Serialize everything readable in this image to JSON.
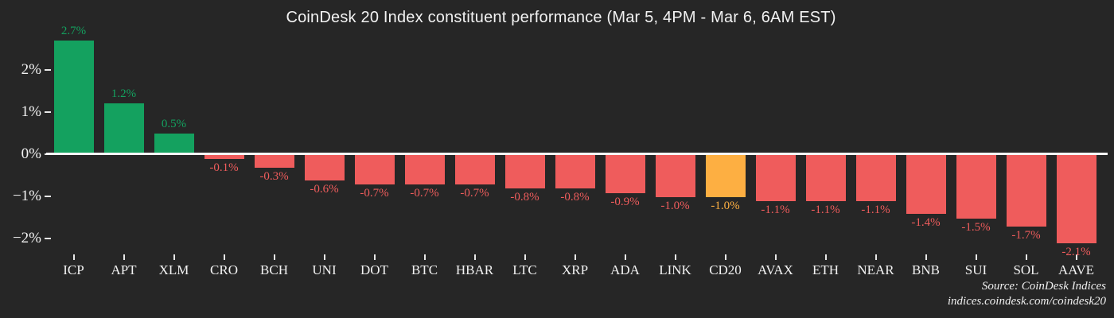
{
  "chart_data": {
    "type": "bar",
    "title": "CoinDesk 20 Index constituent performance (Mar 5, 4PM - Mar 6, 6AM EST)",
    "categories": [
      "ICP",
      "APT",
      "XLM",
      "CRO",
      "BCH",
      "UNI",
      "DOT",
      "BTC",
      "HBAR",
      "LTC",
      "XRP",
      "ADA",
      "LINK",
      "CD20",
      "AVAX",
      "ETH",
      "NEAR",
      "BNB",
      "SUI",
      "SOL",
      "AAVE"
    ],
    "values": [
      2.7,
      1.2,
      0.5,
      -0.1,
      -0.3,
      -0.6,
      -0.7,
      -0.7,
      -0.7,
      -0.8,
      -0.8,
      -0.9,
      -1.0,
      -1.0,
      -1.1,
      -1.1,
      -1.1,
      -1.4,
      -1.5,
      -1.7,
      -2.1
    ],
    "value_labels": [
      "2.7%",
      "1.2%",
      "0.5%",
      "-0.1%",
      "-0.3%",
      "-0.6%",
      "-0.7%",
      "-0.7%",
      "-0.7%",
      "-0.8%",
      "-0.8%",
      "-0.9%",
      "-1.0%",
      "-1.0%",
      "-1.1%",
      "-1.1%",
      "-1.1%",
      "-1.4%",
      "-1.5%",
      "-1.7%",
      "-2.1%"
    ],
    "highlight_category": "CD20",
    "yticks": [
      {
        "label": "2%",
        "value": 2
      },
      {
        "label": "1%",
        "value": 1
      },
      {
        "label": "0%",
        "value": 0
      },
      {
        "label": "−1%",
        "value": -1
      },
      {
        "label": "−2%",
        "value": -2
      }
    ],
    "ylim": [
      -2.6,
      2.9
    ],
    "xlabel": "",
    "ylabel": "",
    "grid": false,
    "legend": "none",
    "colors": {
      "positive": "#14a15f",
      "negative": "#ef5c5c",
      "highlight": "#fdaf42",
      "axis_text": "#f2f2f2",
      "zero_line": "#f7f7f7",
      "background": "#262626"
    },
    "source_line1": "Source: CoinDesk Indices",
    "source_line2": "indices.coindesk.com/coindesk20"
  }
}
